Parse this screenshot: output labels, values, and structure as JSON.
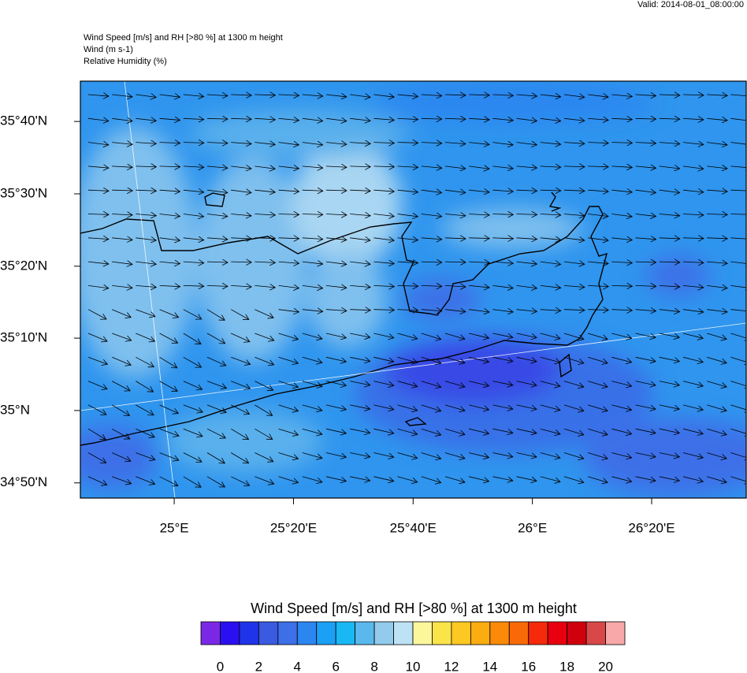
{
  "header": {
    "valid": "Valid: 2014-08-01_08:00:00",
    "title": "Wind Speed [m/s] and RH [>80 %] at 1300 m height",
    "line2": "Wind   (m s-1)",
    "line3": "Relative Humidity   (%)"
  },
  "map": {
    "xlim": [
      24.738,
      26.597
    ],
    "ylim": [
      34.798,
      35.76
    ],
    "xticks": [
      {
        "value": 25,
        "label": "25°E"
      },
      {
        "value": 25.333,
        "label": "25°20'E"
      },
      {
        "value": 25.667,
        "label": "25°40'E"
      },
      {
        "value": 26,
        "label": "26°E"
      },
      {
        "value": 26.333,
        "label": "26°20'E"
      }
    ],
    "yticks": [
      {
        "value": 34.833,
        "label": "34°50'N"
      },
      {
        "value": 35,
        "label": "35°N"
      },
      {
        "value": 35.167,
        "label": "35°10'N"
      },
      {
        "value": 35.333,
        "label": "35°20'N"
      },
      {
        "value": 35.5,
        "label": "35°30'N"
      },
      {
        "value": 35.667,
        "label": "35°40'N"
      }
    ]
  },
  "colorbar": {
    "title": "Wind Speed [m/s] and RH [>80 %] at 1300 m height",
    "lim": [
      -1,
      21
    ],
    "ticks": [
      0,
      2,
      4,
      6,
      8,
      10,
      12,
      14,
      16,
      18,
      20
    ],
    "colors": [
      "#7b28e6",
      "#2a10f0",
      "#1f34e8",
      "#3a5ae0",
      "#3d6fe8",
      "#2b86f0",
      "#1aa0f5",
      "#19b8f5",
      "#5ab8ec",
      "#92cbec",
      "#bde2f5",
      "#fdf79c",
      "#fbe34a",
      "#fcc822",
      "#fbac10",
      "#fb8a08",
      "#f96a06",
      "#f52a0a",
      "#e8000e",
      "#d0000c",
      "#d84848",
      "#f8a8a8"
    ]
  }
}
